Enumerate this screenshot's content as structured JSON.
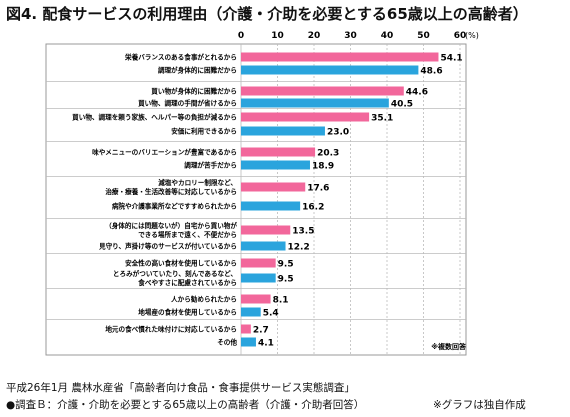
{
  "title": "図4.  配食サービスの利用理由（介護・介助を必要とする65歳以上の高齢者）",
  "colors": {
    "pink": "#f2679b",
    "blue": "#2aa4dd",
    "grid": "#bbbbbb",
    "frame": "#999999"
  },
  "chart_data": {
    "type": "bar",
    "orientation": "horizontal",
    "x_ticks": [
      "0",
      "10",
      "20",
      "30",
      "40",
      "50",
      "60"
    ],
    "x_unit": "(%)",
    "xlim": [
      0,
      60
    ],
    "grid": true,
    "annotation": "※複数回答",
    "bars": [
      {
        "label": [
          "栄養バランスのある食事がとれるから"
        ],
        "value": 54.1,
        "label_text": "54.1",
        "color": "pink",
        "group": 0
      },
      {
        "label": [
          "調理が身体的に困難だから"
        ],
        "value": 48.6,
        "label_text": "48.6",
        "color": "blue",
        "group": 0
      },
      {
        "label": [
          "買い物が身体的に困難だから"
        ],
        "value": 44.6,
        "label_text": "44.6",
        "color": "pink",
        "group": 1
      },
      {
        "label": [
          "買い物、調理の手間が省けるから"
        ],
        "value": 40.5,
        "label_text": "40.5",
        "color": "blue",
        "group": 1
      },
      {
        "label": [
          "買い物、調理を頼う家族、ヘルパー等の負担が減るから"
        ],
        "value": 35.1,
        "label_text": "35.1",
        "color": "pink",
        "group": 2
      },
      {
        "label": [
          "安価に利用できるから"
        ],
        "value": 23.0,
        "label_text": "23.0",
        "color": "blue",
        "group": 2
      },
      {
        "label": [
          "味やメニューのバリエーションが豊富であるから"
        ],
        "value": 20.3,
        "label_text": "20.3",
        "color": "pink",
        "group": 3
      },
      {
        "label": [
          "調理が苦手だから"
        ],
        "value": 18.9,
        "label_text": "18.9",
        "color": "blue",
        "group": 3
      },
      {
        "label": [
          "減塩やカロリー制限など、",
          "治療・療養・生活改善等に対応しているから"
        ],
        "value": 17.6,
        "label_text": "17.6",
        "color": "pink",
        "group": 4
      },
      {
        "label": [
          "病院や介護事業所などですすめられたから"
        ],
        "value": 16.2,
        "label_text": "16.2",
        "color": "blue",
        "group": 4
      },
      {
        "label": [
          "（身体的には問題ないが）自宅から買い物が",
          "できる場所まで遠く、不便だから"
        ],
        "value": 13.5,
        "label_text": "13.5",
        "color": "pink",
        "group": 5
      },
      {
        "label": [
          "見守り、声掛け等のサービスが付いているから"
        ],
        "value": 12.2,
        "label_text": "12.2",
        "color": "blue",
        "group": 5
      },
      {
        "label": [
          "安全性の高い食材を使用しているから"
        ],
        "value": 9.5,
        "label_text": "9.5",
        "color": "pink",
        "group": 6
      },
      {
        "label": [
          "とろみがついていたり、刻んであるなど、",
          "食べやすさに配慮されているから"
        ],
        "value": 9.5,
        "label_text": "9.5",
        "color": "blue",
        "group": 6
      },
      {
        "label": [
          "人から勧められたから"
        ],
        "value": 8.1,
        "label_text": "8.1",
        "color": "pink",
        "group": 7
      },
      {
        "label": [
          "地場産の食材を使用しているから"
        ],
        "value": 5.4,
        "label_text": "5.4",
        "color": "blue",
        "group": 7
      },
      {
        "label": [
          "地元の食べ慣れた味付けに対応しているから"
        ],
        "value": 2.7,
        "label_text": "2.7",
        "color": "pink",
        "group": 8
      },
      {
        "label": [
          "その他"
        ],
        "value": 4.1,
        "label_text": "4.1",
        "color": "blue",
        "group": 8
      }
    ]
  },
  "footer": {
    "source": "平成26年1月 農林水産省「高齢者向け食品・食事提供サービス実態調査」",
    "survey": "●調査Ｂ：介護・介助を必要とする65歳以上の高齢者（介護・介助者回答）",
    "note": "※グラフは独自作成"
  }
}
